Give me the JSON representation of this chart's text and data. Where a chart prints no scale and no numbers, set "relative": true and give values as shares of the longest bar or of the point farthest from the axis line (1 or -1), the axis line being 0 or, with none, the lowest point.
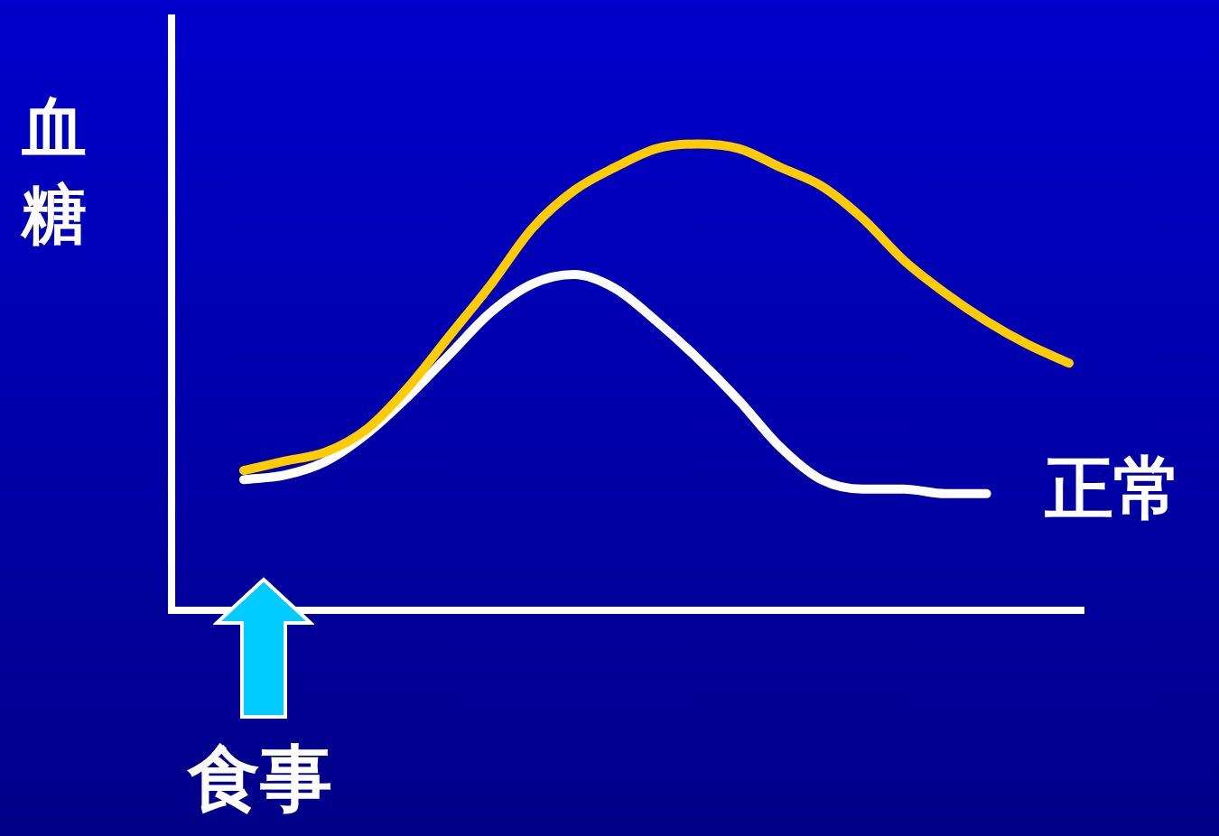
{
  "chart_data": {
    "type": "line",
    "relative": true,
    "ylabel": "血糖",
    "annotations": [
      "食事"
    ],
    "tick_labels": false,
    "marker": "none",
    "categories": [
      null,
      null,
      null,
      null,
      null,
      null,
      null,
      null,
      null,
      null,
      null,
      null,
      null,
      null,
      null,
      null,
      null,
      null,
      null,
      null,
      null
    ],
    "series": [
      {
        "color": "#ffcc00",
        "values": [
          0.3,
          0.32,
          0.34,
          0.39,
          0.48,
          0.59,
          0.7,
          0.82,
          0.9,
          0.95,
          0.99,
          1.0,
          0.99,
          0.95,
          0.91,
          0.84,
          0.75,
          0.68,
          0.62,
          0.57,
          0.53
        ]
      },
      {
        "name": "正常",
        "color": "#ffffff",
        "values": [
          0.28,
          0.29,
          0.32,
          0.38,
          0.46,
          0.55,
          0.64,
          0.7,
          0.72,
          0.69,
          0.62,
          0.54,
          0.45,
          0.35,
          0.28,
          0.26,
          0.26,
          0.25,
          0.25,
          null,
          null
        ]
      }
    ]
  }
}
